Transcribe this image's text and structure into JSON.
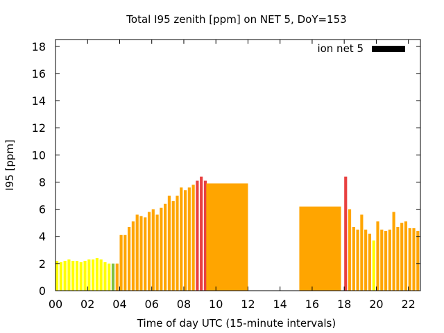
{
  "chart_data": {
    "type": "bar",
    "title": "Total I95 zenith [ppm] on NET 5, DoY=153",
    "xlabel": "Time of day UTC (15-minute intervals)",
    "ylabel": "I95 [ppm]",
    "xlim": [
      0,
      22.75
    ],
    "ylim": [
      0,
      18.5
    ],
    "xticks": [
      0,
      2,
      4,
      6,
      8,
      10,
      12,
      14,
      16,
      18,
      20,
      22
    ],
    "xtick_labels": [
      "00",
      "02",
      "04",
      "06",
      "08",
      "10",
      "12",
      "14",
      "16",
      "18",
      "20",
      "22"
    ],
    "yticks": [
      0,
      2,
      4,
      6,
      8,
      10,
      12,
      14,
      16,
      18
    ],
    "legend": {
      "label": "ion net 5",
      "position": "top-right",
      "color": "#000000"
    },
    "bar_width_hours": 0.18,
    "colors": {
      "yellow": "#ffff00",
      "green": "#80c040",
      "orange": "#ffa500",
      "red": "#e84040"
    },
    "bars": [
      {
        "t": 0.0,
        "v": 2.2,
        "c": "yellow"
      },
      {
        "t": 0.25,
        "v": 2.1,
        "c": "yellow"
      },
      {
        "t": 0.5,
        "v": 2.2,
        "c": "yellow"
      },
      {
        "t": 0.75,
        "v": 2.3,
        "c": "yellow"
      },
      {
        "t": 1.0,
        "v": 2.2,
        "c": "yellow"
      },
      {
        "t": 1.25,
        "v": 2.2,
        "c": "yellow"
      },
      {
        "t": 1.5,
        "v": 2.1,
        "c": "yellow"
      },
      {
        "t": 1.75,
        "v": 2.2,
        "c": "yellow"
      },
      {
        "t": 2.0,
        "v": 2.3,
        "c": "yellow"
      },
      {
        "t": 2.25,
        "v": 2.3,
        "c": "yellow"
      },
      {
        "t": 2.5,
        "v": 2.4,
        "c": "yellow"
      },
      {
        "t": 2.75,
        "v": 2.3,
        "c": "yellow"
      },
      {
        "t": 3.0,
        "v": 2.1,
        "c": "yellow"
      },
      {
        "t": 3.25,
        "v": 2.0,
        "c": "yellow"
      },
      {
        "t": 3.5,
        "v": 2.0,
        "c": "green"
      },
      {
        "t": 3.75,
        "v": 2.0,
        "c": "orange"
      },
      {
        "t": 4.0,
        "v": 4.1,
        "c": "orange"
      },
      {
        "t": 4.25,
        "v": 4.1,
        "c": "orange"
      },
      {
        "t": 4.5,
        "v": 4.7,
        "c": "orange"
      },
      {
        "t": 4.75,
        "v": 5.1,
        "c": "orange"
      },
      {
        "t": 5.0,
        "v": 5.6,
        "c": "orange"
      },
      {
        "t": 5.25,
        "v": 5.5,
        "c": "orange"
      },
      {
        "t": 5.5,
        "v": 5.4,
        "c": "orange"
      },
      {
        "t": 5.75,
        "v": 5.8,
        "c": "orange"
      },
      {
        "t": 6.0,
        "v": 6.0,
        "c": "orange"
      },
      {
        "t": 6.25,
        "v": 5.6,
        "c": "orange"
      },
      {
        "t": 6.5,
        "v": 6.1,
        "c": "orange"
      },
      {
        "t": 6.75,
        "v": 6.4,
        "c": "orange"
      },
      {
        "t": 7.0,
        "v": 7.0,
        "c": "orange"
      },
      {
        "t": 7.25,
        "v": 6.6,
        "c": "orange"
      },
      {
        "t": 7.5,
        "v": 7.0,
        "c": "orange"
      },
      {
        "t": 7.75,
        "v": 7.6,
        "c": "orange"
      },
      {
        "t": 8.0,
        "v": 7.4,
        "c": "orange"
      },
      {
        "t": 8.25,
        "v": 7.6,
        "c": "orange"
      },
      {
        "t": 8.5,
        "v": 7.8,
        "c": "orange"
      },
      {
        "t": 8.75,
        "v": 8.1,
        "c": "red"
      },
      {
        "t": 9.0,
        "v": 8.4,
        "c": "red"
      },
      {
        "t": 9.25,
        "v": 8.1,
        "c": "red"
      },
      {
        "t": 9.4,
        "v": 7.9,
        "c": "orange",
        "w": 2.6
      },
      {
        "t": 15.2,
        "v": 6.2,
        "c": "orange",
        "w": 2.6
      },
      {
        "t": 18.0,
        "v": 8.4,
        "c": "red"
      },
      {
        "t": 18.25,
        "v": 6.0,
        "c": "orange"
      },
      {
        "t": 18.5,
        "v": 4.7,
        "c": "orange"
      },
      {
        "t": 18.75,
        "v": 4.5,
        "c": "orange"
      },
      {
        "t": 19.0,
        "v": 5.6,
        "c": "orange"
      },
      {
        "t": 19.25,
        "v": 4.5,
        "c": "orange"
      },
      {
        "t": 19.5,
        "v": 4.2,
        "c": "orange"
      },
      {
        "t": 19.75,
        "v": 3.7,
        "c": "yellow"
      },
      {
        "t": 20.0,
        "v": 5.1,
        "c": "orange"
      },
      {
        "t": 20.25,
        "v": 4.5,
        "c": "orange"
      },
      {
        "t": 20.5,
        "v": 4.4,
        "c": "orange"
      },
      {
        "t": 20.75,
        "v": 4.5,
        "c": "orange"
      },
      {
        "t": 21.0,
        "v": 5.8,
        "c": "orange"
      },
      {
        "t": 21.25,
        "v": 4.7,
        "c": "orange"
      },
      {
        "t": 21.5,
        "v": 5.0,
        "c": "orange"
      },
      {
        "t": 21.75,
        "v": 5.1,
        "c": "orange"
      },
      {
        "t": 22.0,
        "v": 4.6,
        "c": "orange"
      },
      {
        "t": 22.25,
        "v": 4.6,
        "c": "orange"
      },
      {
        "t": 22.5,
        "v": 4.4,
        "c": "orange"
      }
    ]
  }
}
